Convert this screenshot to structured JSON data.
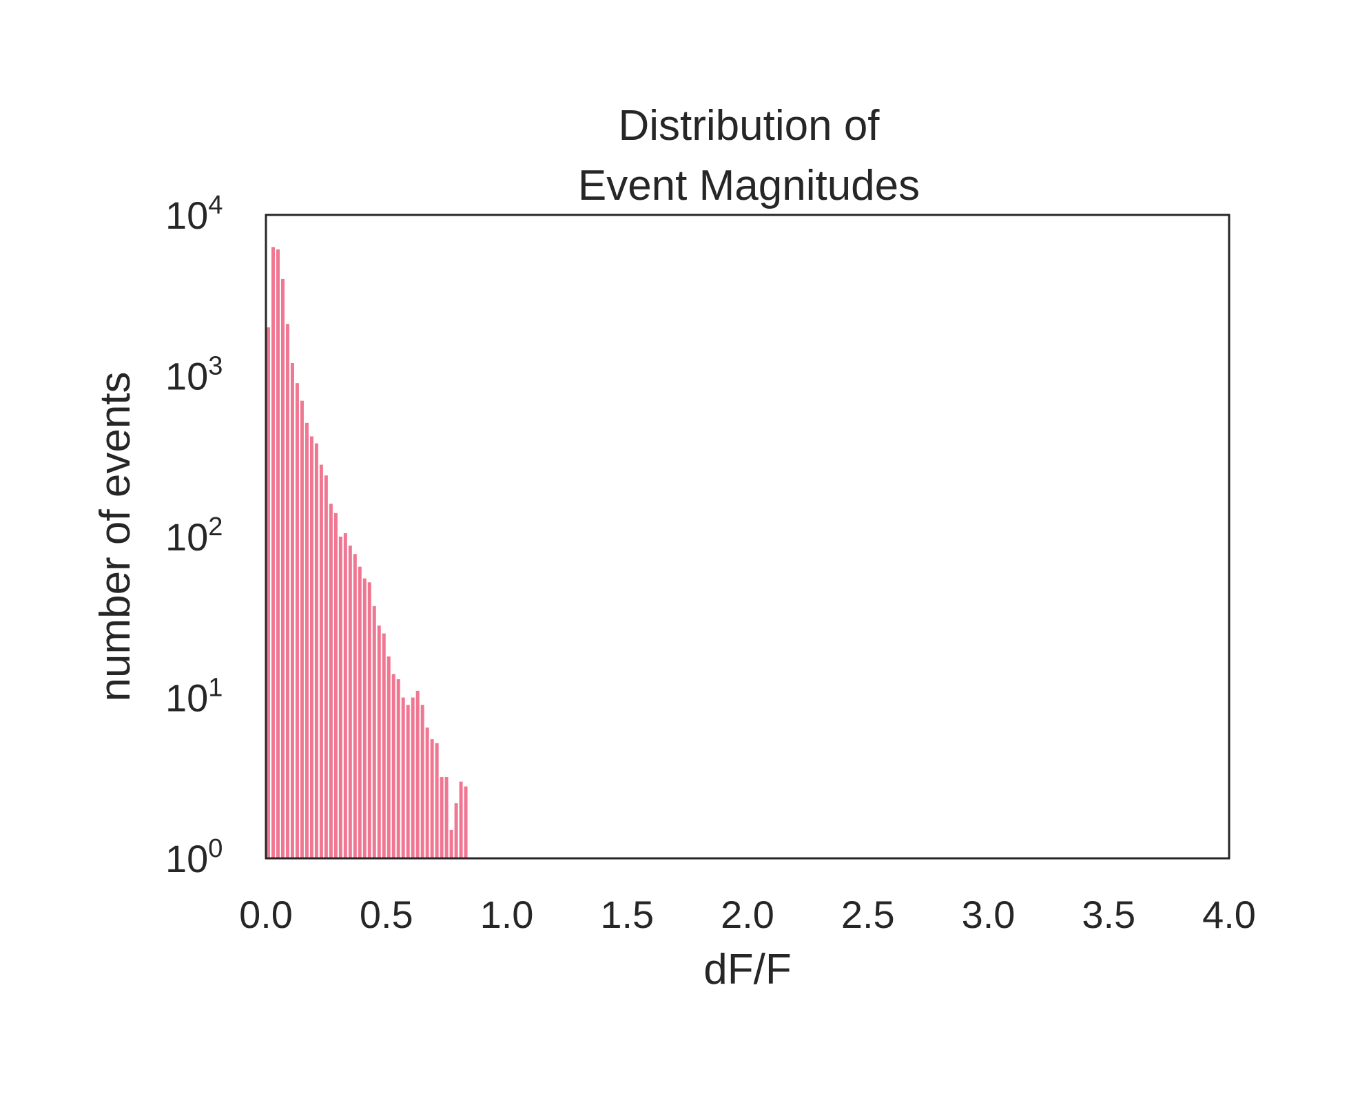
{
  "chart_data": {
    "type": "bar",
    "title_lines": [
      "Distribution of",
      "Event Magnitudes"
    ],
    "xlabel": "dF/F",
    "ylabel": "number of events",
    "xlim": [
      0,
      4
    ],
    "ylim": [
      1,
      10000
    ],
    "yscale": "log",
    "x_ticks": [
      "0.0",
      "0.5",
      "1.0",
      "1.5",
      "2.0",
      "2.5",
      "3.0",
      "3.5",
      "4.0"
    ],
    "y_ticks": [
      {
        "base": "10",
        "exp": "0"
      },
      {
        "base": "10",
        "exp": "1"
      },
      {
        "base": "10",
        "exp": "2"
      },
      {
        "base": "10",
        "exp": "3"
      },
      {
        "base": "10",
        "exp": "4"
      }
    ],
    "grid": false,
    "bar_color": "#f07792",
    "bin_width": 0.02,
    "x": [
      0.01,
      0.03,
      0.05,
      0.07,
      0.09,
      0.11,
      0.13,
      0.15,
      0.17,
      0.19,
      0.21,
      0.23,
      0.25,
      0.27,
      0.29,
      0.31,
      0.33,
      0.35,
      0.37,
      0.39,
      0.41,
      0.43,
      0.45,
      0.47,
      0.49,
      0.51,
      0.53,
      0.55,
      0.57,
      0.59,
      0.61,
      0.63,
      0.65,
      0.67,
      0.69,
      0.71,
      0.73,
      0.75,
      0.77,
      0.79,
      0.81,
      0.83,
      0.85,
      0.87,
      0.89,
      0.91,
      0.93,
      0.95,
      0.97,
      1.05,
      1.13
    ],
    "values": [
      2000,
      6300,
      6100,
      4000,
      2100,
      1200,
      900,
      700,
      510,
      420,
      380,
      280,
      240,
      160,
      140,
      100,
      105,
      88,
      78,
      65,
      55,
      52,
      37,
      28,
      25,
      18,
      14,
      13,
      10,
      9,
      10,
      11,
      9,
      6.5,
      5.5,
      5.2,
      3.2,
      3.2,
      1.5,
      2.2,
      3,
      2.8,
      1,
      0,
      0,
      0,
      0,
      0,
      0,
      0,
      0
    ]
  }
}
